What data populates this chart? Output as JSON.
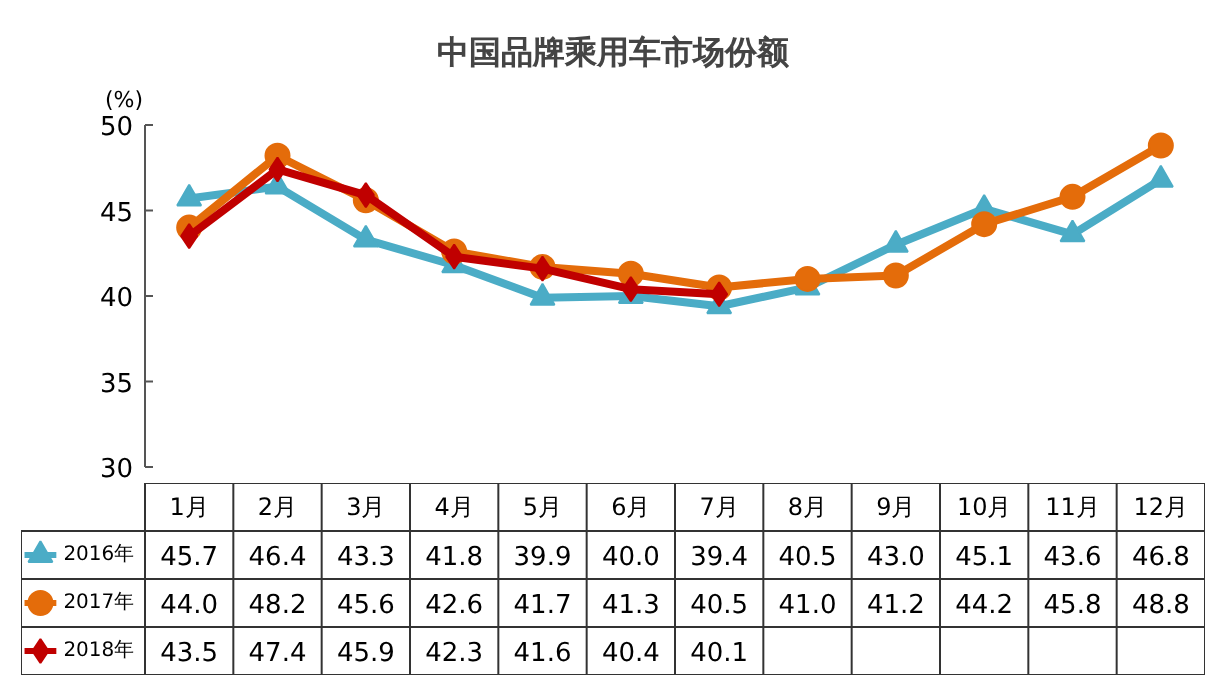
{
  "chart_data": {
    "type": "line",
    "title": "中国品牌乘用车市场份额",
    "ylabel": "(%)",
    "categories": [
      "1月",
      "2月",
      "3月",
      "4月",
      "5月",
      "6月",
      "7月",
      "8月",
      "9月",
      "10月",
      "11月",
      "12月"
    ],
    "series": [
      {
        "name": "2016年",
        "color": "#4bacc6",
        "marker": "triangle",
        "values": [
          45.7,
          46.4,
          43.3,
          41.8,
          39.9,
          40.0,
          39.4,
          40.5,
          43.0,
          45.1,
          43.6,
          46.8
        ],
        "value_labels": [
          "45.7",
          "46.4",
          "43.3",
          "41.8",
          "39.9",
          "40.0",
          "39.4",
          "40.5",
          "43.0",
          "45.1",
          "43.6",
          "46.8"
        ]
      },
      {
        "name": "2017年",
        "color": "#e46c0a",
        "marker": "circle",
        "values": [
          44.0,
          48.2,
          45.6,
          42.6,
          41.7,
          41.3,
          40.5,
          41.0,
          41.2,
          44.2,
          45.8,
          48.8
        ],
        "value_labels": [
          "44.0",
          "48.2",
          "45.6",
          "42.6",
          "41.7",
          "41.3",
          "40.5",
          "41.0",
          "41.2",
          "44.2",
          "45.8",
          "48.8"
        ]
      },
      {
        "name": "2018年",
        "color": "#c00000",
        "marker": "diamond",
        "values": [
          43.5,
          47.4,
          45.9,
          42.3,
          41.6,
          40.4,
          40.1,
          null,
          null,
          null,
          null,
          null
        ],
        "value_labels": [
          "43.5",
          "47.4",
          "45.9",
          "42.3",
          "41.6",
          "40.4",
          "40.1",
          null,
          null,
          null,
          null,
          null
        ]
      }
    ],
    "ylim": [
      30,
      50
    ],
    "yticks": [
      30,
      35,
      40,
      45,
      50
    ],
    "grid": false,
    "legend": "bottom"
  }
}
